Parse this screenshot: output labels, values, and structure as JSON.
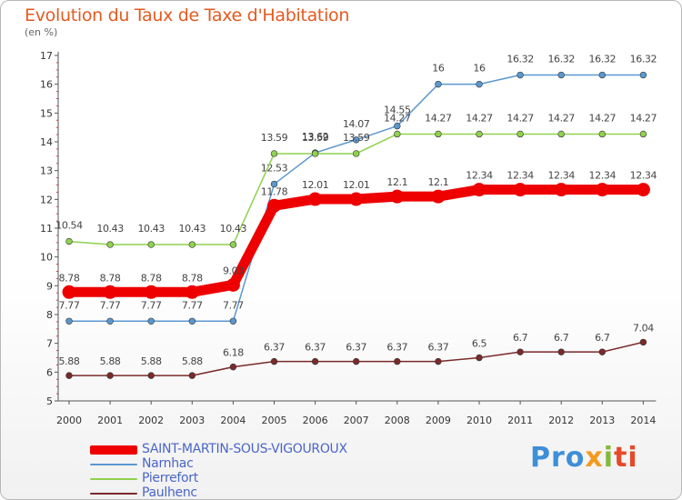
{
  "title": "Evolution du Taux de Taxe d'Habitation",
  "unit": "(en %)",
  "brand": {
    "parts": [
      "Pro",
      "x",
      "i",
      "ti"
    ],
    "colors": [
      "#3d8fd8",
      "#f39a1f",
      "#82b93a",
      "#e44a2a"
    ]
  },
  "chart_data": {
    "type": "line",
    "x": [
      "2000",
      "2001",
      "2002",
      "2003",
      "2004",
      "2005",
      "2006",
      "2007",
      "2008",
      "2009",
      "2010",
      "2011",
      "2012",
      "2013",
      "2014"
    ],
    "ylim": [
      5,
      17
    ],
    "yticks": [
      "5",
      "6",
      "7",
      "8",
      "9",
      "10",
      "11",
      "12",
      "13",
      "14",
      "15",
      "16",
      "17"
    ],
    "grid": false,
    "legend_position": "bottom-left",
    "series": [
      {
        "name": "SAINT-MARTIN-SOUS-VIGOUROUX",
        "color": "#ee0000",
        "values": [
          8.78,
          8.78,
          8.78,
          8.78,
          9.03,
          11.78,
          12.01,
          12.01,
          12.1,
          12.1,
          12.34,
          12.34,
          12.34,
          12.34,
          12.34
        ],
        "labels": [
          "8.78",
          "8.78",
          "8.78",
          "8.78",
          "9.03",
          "11.78",
          "12.01",
          "12.01",
          "12.1",
          "12.1",
          "12.34",
          "12.34",
          "12.34",
          "12.34",
          "12.34"
        ]
      },
      {
        "name": "Narnhac",
        "color": "#5b97cf",
        "values": [
          7.77,
          7.77,
          7.77,
          7.77,
          7.77,
          12.53,
          13.62,
          14.07,
          14.55,
          16,
          16,
          16.32,
          16.32,
          16.32,
          16.32
        ],
        "labels": [
          "7.77",
          "7.77",
          "7.77",
          "7.77",
          "7.77",
          "12.53",
          "13.62",
          "14.07",
          "14.55",
          "16",
          "16",
          "16.32",
          "16.32",
          "16.32",
          "16.32"
        ]
      },
      {
        "name": "Pierrefort",
        "color": "#8fd14f",
        "values": [
          10.54,
          10.43,
          10.43,
          10.43,
          10.43,
          13.59,
          13.59,
          13.59,
          14.27,
          14.27,
          14.27,
          14.27,
          14.27,
          14.27,
          14.27
        ],
        "labels": [
          "10.54",
          "10.43",
          "10.43",
          "10.43",
          "10.43",
          "13.59",
          "13.59",
          "13.59",
          "14.27",
          "14.27",
          "14.27",
          "14.27",
          "14.27",
          "14.27",
          "14.27"
        ]
      },
      {
        "name": "Paulhenc",
        "color": "#7a2a2a",
        "values": [
          5.88,
          5.88,
          5.88,
          5.88,
          6.18,
          6.37,
          6.37,
          6.37,
          6.37,
          6.37,
          6.5,
          6.7,
          6.7,
          6.7,
          7.04
        ],
        "labels": [
          "5.88",
          "5.88",
          "5.88",
          "5.88",
          "6.18",
          "6.37",
          "6.37",
          "6.37",
          "6.37",
          "6.37",
          "6.5",
          "6.7",
          "6.7",
          "6.7",
          "7.04"
        ]
      }
    ]
  }
}
